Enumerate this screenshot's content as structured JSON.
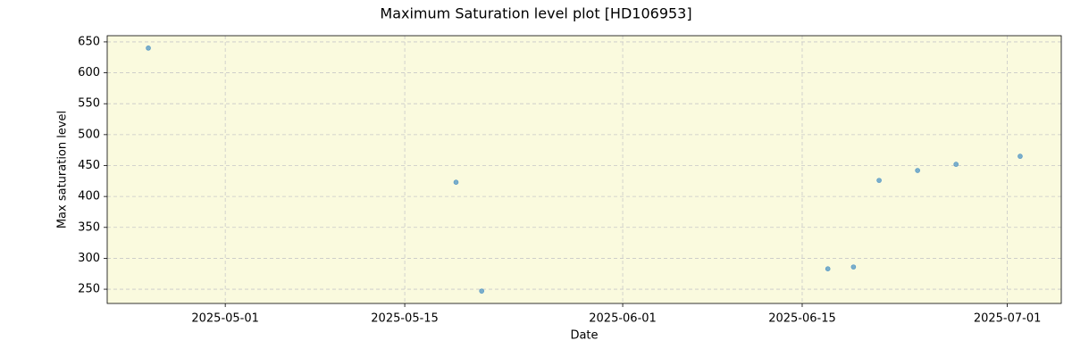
{
  "chart_data": {
    "type": "scatter",
    "title": "Maximum Saturation level plot [HD106953]",
    "x_label": "Date",
    "y_label": "Max saturation level",
    "series": [
      {
        "color": "#4f94c4",
        "x": [
          "2025-04-25",
          "2025-05-19",
          "2025-05-21",
          "2025-06-17",
          "2025-06-19",
          "2025-06-21",
          "2025-06-24",
          "2025-06-27",
          "2025-07-02"
        ],
        "values": [
          640,
          423,
          247,
          283,
          286,
          426,
          442,
          452,
          465
        ]
      }
    ],
    "xlim": [
      "2025-04-21T19:00",
      "2025-07-05T05:00"
    ],
    "xticks": [
      "2025-05-01",
      "2025-05-15",
      "2025-06-01",
      "2025-06-15",
      "2025-07-01"
    ],
    "ylim": [
      227,
      660
    ],
    "yticks": [
      250,
      300,
      350,
      400,
      450,
      500,
      550,
      600,
      650
    ],
    "grid": true,
    "background": "#fafade"
  }
}
